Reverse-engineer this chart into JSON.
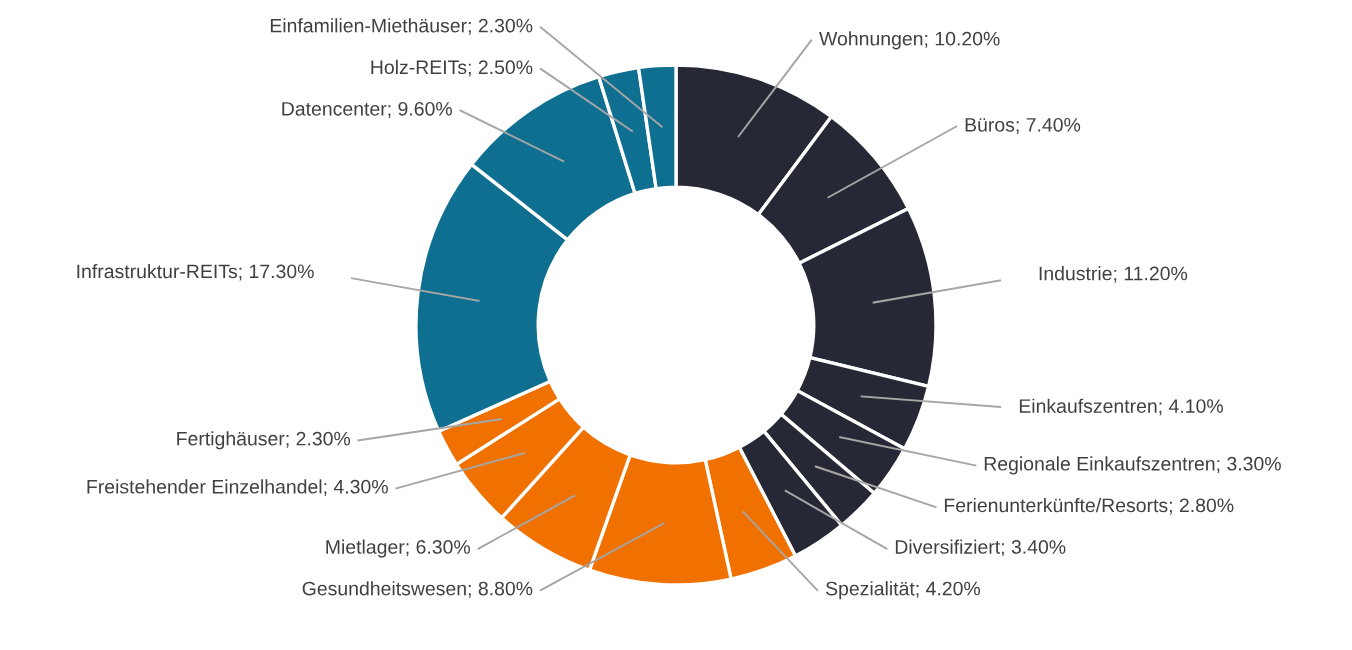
{
  "chart_data": {
    "type": "donut",
    "categories": [
      "Wohnungen",
      "Büros",
      "Industrie",
      "Einkaufszentren",
      "Regionale Einkaufszentren",
      "Ferienunterkünfte/Resorts",
      "Diversifiziert",
      "Spezialität",
      "Gesundheitswesen",
      "Mietlager",
      "Freistehender Einzelhandel",
      "Fertighäuser",
      "Infrastruktur-REITs",
      "Datencenter",
      "Holz-REITs",
      "Einfamilien-Miethäuser"
    ],
    "values": [
      10.2,
      7.4,
      11.2,
      4.1,
      3.3,
      2.8,
      3.4,
      4.2,
      8.8,
      6.3,
      4.3,
      2.3,
      17.3,
      9.6,
      2.5,
      2.3
    ],
    "value_labels": [
      "10.20%",
      "7.40%",
      "11.20%",
      "4.10%",
      "3.30%",
      "2.80%",
      "3.40%",
      "4.20%",
      "8.80%",
      "6.30%",
      "4.30%",
      "2.30%",
      "17.30%",
      "9.60%",
      "2.50%",
      "2.30%"
    ],
    "colors": [
      "#262935",
      "#262935",
      "#262935",
      "#262935",
      "#262935",
      "#262935",
      "#262935",
      "#f07000",
      "#f07000",
      "#f07000",
      "#f07000",
      "#f07000",
      "#0f6f90",
      "#0f6f90",
      "#0f6f90",
      "#0f6f90"
    ]
  }
}
